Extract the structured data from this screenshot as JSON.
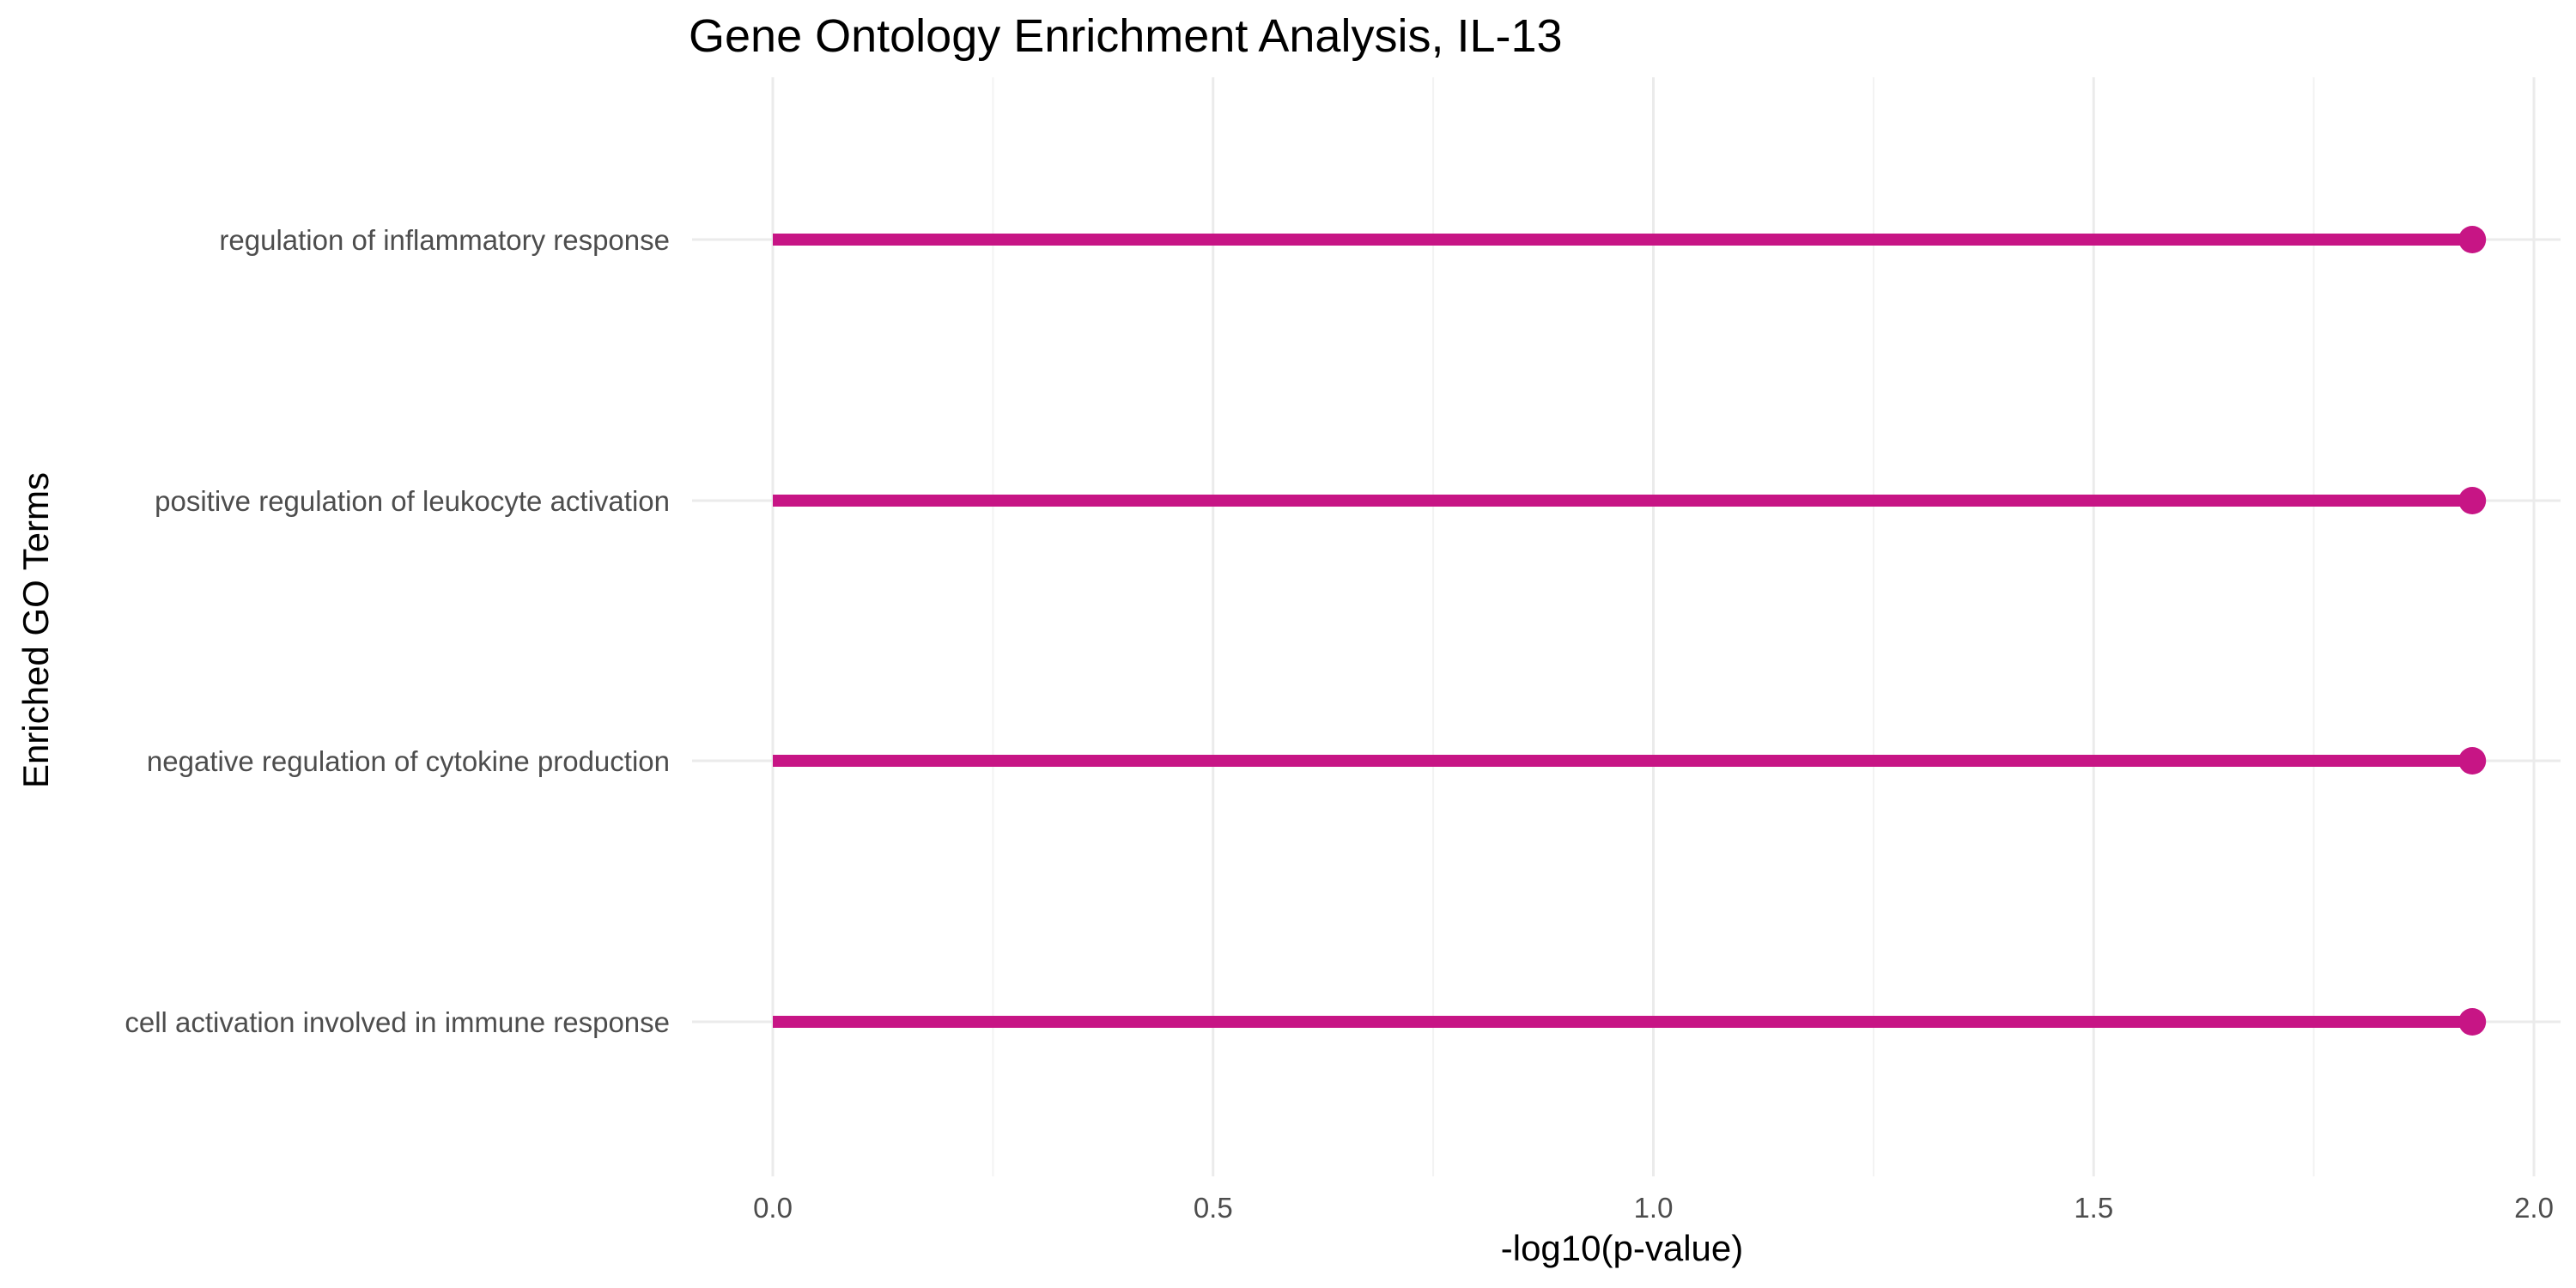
{
  "chart_data": {
    "type": "lollipop",
    "title": "Gene Ontology Enrichment Analysis, IL-13",
    "xlabel": "-log10(p-value)",
    "ylabel": "Enriched GO Terms",
    "xlim": [
      0,
      2.0
    ],
    "xticks": [
      "0.0",
      "0.5",
      "1.0",
      "1.5",
      "2.0"
    ],
    "grid": true,
    "categories": [
      "regulation of inflammatory response",
      "positive regulation of leukocyte activation",
      "negative regulation of cytokine production",
      "cell activation involved in immune response"
    ],
    "values": [
      1.93,
      1.93,
      1.93,
      1.93
    ],
    "color": "#c71585"
  }
}
